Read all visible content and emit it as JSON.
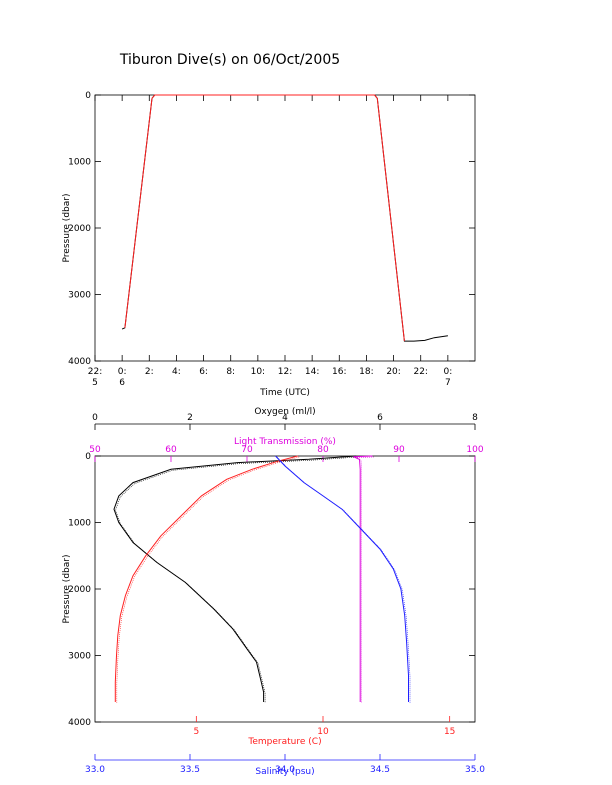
{
  "page": {
    "title": "Tiburon Dive(s) on 06/Oct/2005"
  },
  "colors": {
    "black": "#000000",
    "red": "#ff2020",
    "magenta": "#dd00dd",
    "blue": "#2020ff"
  },
  "chart_data": [
    {
      "id": "dive-profile",
      "type": "line",
      "xlabel": "Time (UTC)",
      "ylabel": "Pressure (dbar)",
      "xlim": [
        -2,
        26
      ],
      "ylim": [
        4000,
        0
      ],
      "x_ticks": [
        {
          "x": -2,
          "label": "22:\n5"
        },
        {
          "x": 0,
          "label": "0:\n6"
        },
        {
          "x": 2,
          "label": "2:"
        },
        {
          "x": 4,
          "label": "4:"
        },
        {
          "x": 6,
          "label": "6:"
        },
        {
          "x": 8,
          "label": "8:"
        },
        {
          "x": 10,
          "label": "10:"
        },
        {
          "x": 12,
          "label": "12:"
        },
        {
          "x": 14,
          "label": "14:"
        },
        {
          "x": 16,
          "label": "16:"
        },
        {
          "x": 18,
          "label": "18:"
        },
        {
          "x": 20,
          "label": "20:"
        },
        {
          "x": 22,
          "label": "22:"
        },
        {
          "x": 24,
          "label": "0:\n7"
        }
      ],
      "y_ticks": [
        0,
        1000,
        2000,
        3000,
        4000
      ],
      "series": [
        {
          "color": "#000000",
          "x": [
            0.0,
            0.2,
            2.2,
            2.4,
            18.6,
            18.8,
            20.8,
            21.5,
            22.3,
            23.0,
            24.0
          ],
          "y": [
            3520,
            3500,
            50,
            0,
            0,
            50,
            3700,
            3700,
            3690,
            3650,
            3620
          ]
        },
        {
          "color": "#ff2020",
          "x": [
            0.2,
            2.2,
            2.4,
            18.6,
            18.8,
            20.8
          ],
          "y": [
            3500,
            50,
            0,
            0,
            50,
            3700
          ]
        }
      ]
    },
    {
      "id": "profiles",
      "type": "line",
      "ylabel": "Pressure (dbar)",
      "ylim": [
        4000,
        0
      ],
      "y_ticks": [
        0,
        1000,
        2000,
        3000,
        4000
      ],
      "axes": [
        {
          "label": "Oxygen (ml/l)",
          "side": "top",
          "color": "#000000",
          "range": [
            0,
            8
          ],
          "ticks": [
            "0",
            "2",
            "4",
            "6",
            "8"
          ]
        },
        {
          "label": "Light Transmission (%)",
          "side": "top",
          "color": "#dd00dd",
          "range": [
            50,
            100
          ],
          "ticks": [
            "50",
            "60",
            "70",
            "80",
            "90",
            "100"
          ]
        },
        {
          "label": "Temperature (C)",
          "side": "bottom",
          "color": "#ff2020",
          "range": [
            1,
            16
          ],
          "ticks": [
            "5",
            "10",
            "15"
          ],
          "tick_values": [
            5,
            10,
            15
          ]
        },
        {
          "label": "Salinity (psu)",
          "side": "bottom",
          "color": "#2020ff",
          "range": [
            33.0,
            35.0
          ],
          "ticks": [
            "33.0",
            "33.5",
            "34.0",
            "34.5",
            "35.0"
          ]
        }
      ],
      "series": [
        {
          "name": "Oxygen",
          "axis": 0,
          "color": "#000000",
          "x": [
            5.5,
            4.5,
            3.0,
            1.6,
            0.8,
            0.5,
            0.4,
            0.5,
            0.8,
            1.3,
            1.9,
            2.5,
            2.9,
            3.2,
            3.4,
            3.5,
            3.55,
            3.55
          ],
          "y": [
            0,
            50,
            100,
            200,
            400,
            600,
            800,
            1000,
            1300,
            1600,
            1900,
            2300,
            2600,
            2900,
            3100,
            3400,
            3550,
            3700
          ]
        },
        {
          "name": "Light Transmission",
          "axis": 1,
          "color": "#dd00dd",
          "x": [
            86.5,
            84.0,
            84.8,
            84.9,
            84.9,
            84.9,
            84.9,
            84.9,
            84.9,
            84.9
          ],
          "y": [
            0,
            10,
            50,
            200,
            500,
            1000,
            2000,
            3000,
            3500,
            3700
          ]
        },
        {
          "name": "Temperature",
          "axis": 2,
          "color": "#ff2020",
          "x": [
            9.0,
            8.2,
            7.2,
            6.2,
            5.2,
            4.4,
            3.6,
            3.0,
            2.5,
            2.2,
            2.0,
            1.9,
            1.85,
            1.8,
            1.8
          ],
          "y": [
            0,
            80,
            200,
            350,
            600,
            900,
            1200,
            1500,
            1800,
            2100,
            2400,
            2700,
            3000,
            3400,
            3700
          ]
        },
        {
          "name": "Salinity",
          "axis": 3,
          "color": "#2020ff",
          "x": [
            33.95,
            34.0,
            34.1,
            34.2,
            34.3,
            34.4,
            34.5,
            34.57,
            34.61,
            34.63,
            34.64,
            34.65,
            34.65
          ],
          "y": [
            0,
            150,
            400,
            600,
            800,
            1100,
            1400,
            1700,
            2000,
            2400,
            2800,
            3300,
            3700
          ]
        }
      ]
    }
  ]
}
